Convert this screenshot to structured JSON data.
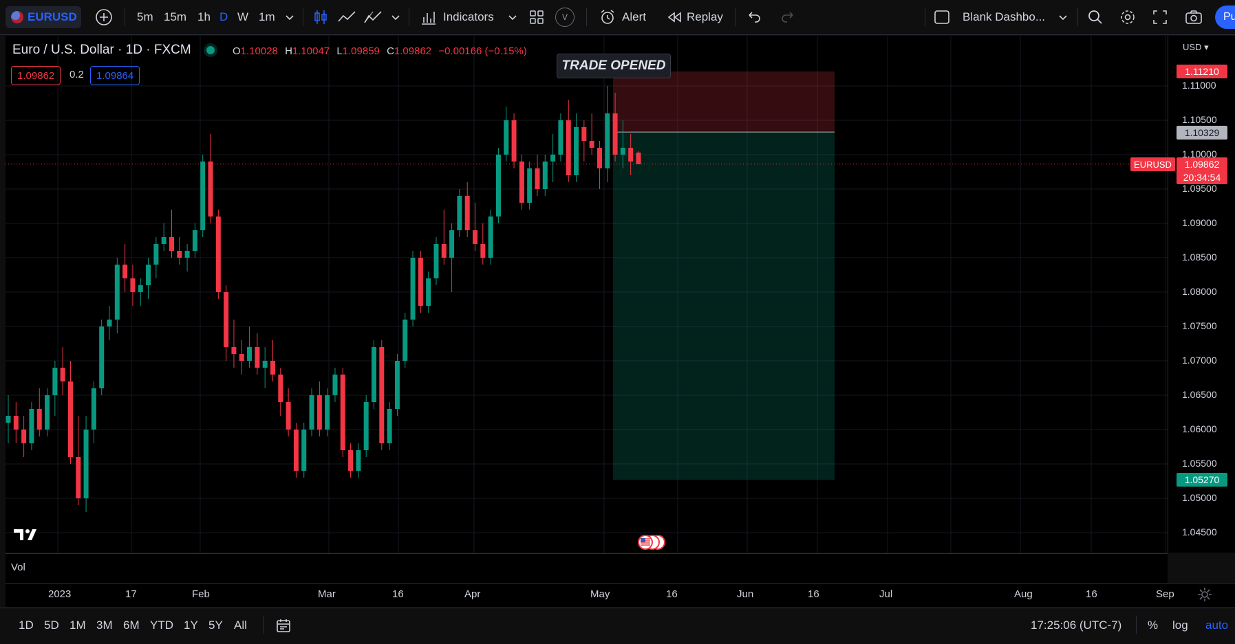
{
  "toolbar": {
    "symbol": "EURUSD",
    "intervals": [
      "5m",
      "15m",
      "1h",
      "D",
      "W",
      "1m"
    ],
    "active_interval": "D",
    "indicators_label": "Indicators",
    "alert_label": "Alert",
    "replay_label": "Replay",
    "layout_name": "Blank Dashbo...",
    "publish_label": "Pu",
    "template_badge": "V"
  },
  "legend": {
    "title": "Euro / U.S. Dollar · 1D · FXCM",
    "o_key": "O",
    "o_val": "1.10028",
    "h_key": "H",
    "h_val": "1.10047",
    "l_key": "L",
    "l_val": "1.09859",
    "c_key": "C",
    "c_val": "1.09862",
    "change": "−0.00166 (−0.15%)",
    "sell_price": "1.09862",
    "spread": "0.2",
    "buy_price": "1.09864"
  },
  "chart": {
    "trade_label": "TRADE OPENED",
    "currency": "USD",
    "symbol_tag": "EURUSD",
    "current_price": "1.09862",
    "countdown": "20:34:54",
    "stop_price": "1.11210",
    "entry_price": "1.10329",
    "target_price": "1.05270",
    "price_ticks": [
      "1.11000",
      "1.10500",
      "1.10000",
      "1.09500",
      "1.09000",
      "1.08500",
      "1.08000",
      "1.07500",
      "1.07000",
      "1.06500",
      "1.06000",
      "1.05500",
      "1.05000",
      "1.04500"
    ],
    "time_ticks": [
      "2023",
      "17",
      "Feb",
      "Mar",
      "16",
      "Apr",
      "May",
      "16",
      "Jun",
      "16",
      "Jul",
      "Aug",
      "16",
      "Sep"
    ],
    "volume_label": "Vol",
    "colors": {
      "up": "#089981",
      "down": "#f23645",
      "background": "#000000",
      "accent": "#2962ff"
    }
  },
  "chart_data": {
    "type": "candlestick",
    "symbol": "EURUSD",
    "ylim": [
      1.0425,
      1.1175
    ],
    "candles_approx": [
      [
        1.061,
        1.065,
        1.058,
        1.062
      ],
      [
        1.062,
        1.064,
        1.058,
        1.06
      ],
      [
        1.06,
        1.062,
        1.056,
        1.058
      ],
      [
        1.058,
        1.064,
        1.057,
        1.063
      ],
      [
        1.063,
        1.066,
        1.059,
        1.06
      ],
      [
        1.06,
        1.066,
        1.059,
        1.065
      ],
      [
        1.065,
        1.07,
        1.062,
        1.069
      ],
      [
        1.069,
        1.072,
        1.065,
        1.067
      ],
      [
        1.067,
        1.07,
        1.055,
        1.056
      ],
      [
        1.056,
        1.062,
        1.049,
        1.05
      ],
      [
        1.05,
        1.062,
        1.048,
        1.06
      ],
      [
        1.06,
        1.067,
        1.058,
        1.066
      ],
      [
        1.066,
        1.076,
        1.065,
        1.075
      ],
      [
        1.075,
        1.078,
        1.073,
        1.076
      ],
      [
        1.076,
        1.085,
        1.074,
        1.084
      ],
      [
        1.084,
        1.087,
        1.08,
        1.082
      ],
      [
        1.082,
        1.084,
        1.078,
        1.08
      ],
      [
        1.08,
        1.082,
        1.078,
        1.081
      ],
      [
        1.081,
        1.085,
        1.079,
        1.084
      ],
      [
        1.084,
        1.088,
        1.082,
        1.087
      ],
      [
        1.087,
        1.09,
        1.086,
        1.088
      ],
      [
        1.088,
        1.092,
        1.085,
        1.086
      ],
      [
        1.086,
        1.088,
        1.084,
        1.085
      ],
      [
        1.085,
        1.087,
        1.083,
        1.086
      ],
      [
        1.086,
        1.09,
        1.085,
        1.089
      ],
      [
        1.089,
        1.1,
        1.088,
        1.099
      ],
      [
        1.099,
        1.103,
        1.09,
        1.091
      ],
      [
        1.091,
        1.092,
        1.079,
        1.08
      ],
      [
        1.08,
        1.081,
        1.07,
        1.072
      ],
      [
        1.072,
        1.076,
        1.069,
        1.071
      ],
      [
        1.071,
        1.073,
        1.068,
        1.07
      ],
      [
        1.07,
        1.075,
        1.069,
        1.072
      ],
      [
        1.072,
        1.074,
        1.068,
        1.069
      ],
      [
        1.069,
        1.072,
        1.066,
        1.07
      ],
      [
        1.07,
        1.073,
        1.067,
        1.068
      ],
      [
        1.068,
        1.069,
        1.062,
        1.064
      ],
      [
        1.064,
        1.066,
        1.059,
        1.06
      ],
      [
        1.06,
        1.061,
        1.053,
        1.054
      ],
      [
        1.054,
        1.061,
        1.053,
        1.06
      ],
      [
        1.06,
        1.066,
        1.059,
        1.065
      ],
      [
        1.065,
        1.067,
        1.059,
        1.06
      ],
      [
        1.06,
        1.066,
        1.059,
        1.065
      ],
      [
        1.065,
        1.069,
        1.064,
        1.068
      ],
      [
        1.068,
        1.069,
        1.056,
        1.057
      ],
      [
        1.057,
        1.058,
        1.053,
        1.054
      ],
      [
        1.054,
        1.058,
        1.053,
        1.057
      ],
      [
        1.057,
        1.065,
        1.056,
        1.064
      ],
      [
        1.064,
        1.073,
        1.063,
        1.072
      ],
      [
        1.072,
        1.073,
        1.057,
        1.058
      ],
      [
        1.058,
        1.064,
        1.057,
        1.063
      ],
      [
        1.063,
        1.071,
        1.062,
        1.07
      ],
      [
        1.07,
        1.077,
        1.069,
        1.076
      ],
      [
        1.076,
        1.086,
        1.075,
        1.085
      ],
      [
        1.085,
        1.086,
        1.077,
        1.078
      ],
      [
        1.078,
        1.083,
        1.077,
        1.082
      ],
      [
        1.082,
        1.088,
        1.081,
        1.087
      ],
      [
        1.087,
        1.092,
        1.084,
        1.085
      ],
      [
        1.085,
        1.09,
        1.08,
        1.089
      ],
      [
        1.089,
        1.095,
        1.088,
        1.094
      ],
      [
        1.094,
        1.096,
        1.088,
        1.089
      ],
      [
        1.089,
        1.093,
        1.086,
        1.087
      ],
      [
        1.087,
        1.09,
        1.084,
        1.085
      ],
      [
        1.085,
        1.092,
        1.084,
        1.091
      ],
      [
        1.091,
        1.101,
        1.09,
        1.1
      ],
      [
        1.1,
        1.107,
        1.099,
        1.105
      ],
      [
        1.105,
        1.106,
        1.098,
        1.099
      ],
      [
        1.099,
        1.1,
        1.092,
        1.093
      ],
      [
        1.093,
        1.099,
        1.092,
        1.098
      ],
      [
        1.098,
        1.1,
        1.094,
        1.095
      ],
      [
        1.095,
        1.1,
        1.094,
        1.099
      ],
      [
        1.099,
        1.103,
        1.096,
        1.1
      ],
      [
        1.1,
        1.106,
        1.099,
        1.105
      ],
      [
        1.105,
        1.108,
        1.096,
        1.097
      ],
      [
        1.097,
        1.106,
        1.096,
        1.104
      ],
      [
        1.104,
        1.105,
        1.099,
        1.102
      ],
      [
        1.102,
        1.106,
        1.1,
        1.101
      ],
      [
        1.101,
        1.102,
        1.095,
        1.098
      ],
      [
        1.098,
        1.11,
        1.096,
        1.106
      ],
      [
        1.106,
        1.109,
        1.099,
        1.1
      ],
      [
        1.1,
        1.105,
        1.098,
        1.101
      ],
      [
        1.101,
        1.103,
        1.097,
        1.099
      ],
      [
        1.1003,
        1.1005,
        1.0986,
        1.0986
      ]
    ],
    "position": {
      "entry": 1.10329,
      "stop": 1.1121,
      "target": 1.0527
    }
  }
}
